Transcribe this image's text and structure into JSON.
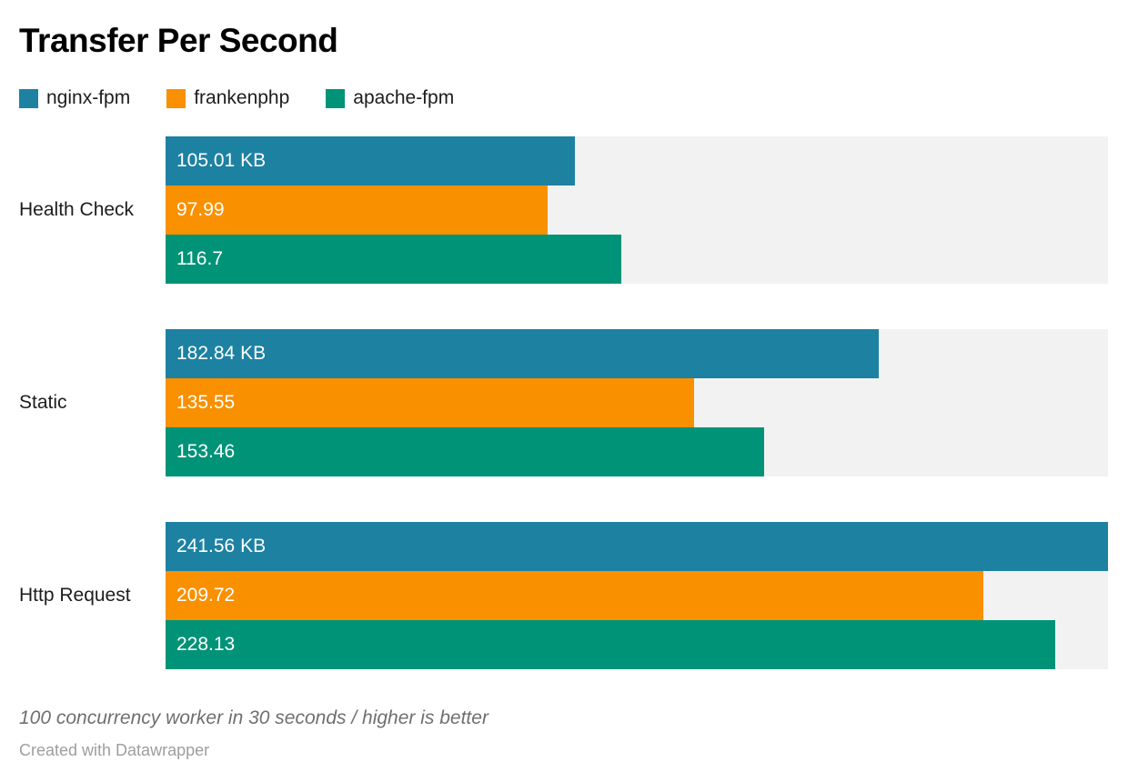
{
  "chart_data": {
    "type": "bar",
    "orientation": "horizontal",
    "title": "Transfer Per Second",
    "categories": [
      "Health Check",
      "Static",
      "Http Request"
    ],
    "series": [
      {
        "name": "nginx-fpm",
        "color": "#1d81a2",
        "values": [
          105.01,
          182.84,
          241.56
        ],
        "labels": [
          "105.01 KB",
          "182.84 KB",
          "241.56 KB"
        ]
      },
      {
        "name": "frankenphp",
        "color": "#f99000",
        "values": [
          97.99,
          135.55,
          209.72
        ],
        "labels": [
          "97.99",
          "135.55",
          "209.72"
        ]
      },
      {
        "name": "apache-fpm",
        "color": "#009377",
        "values": [
          116.7,
          153.46,
          228.13
        ],
        "labels": [
          "116.7",
          "153.46",
          "228.13"
        ]
      }
    ],
    "xmax": 241.56,
    "unit": "KB",
    "xlabel": "",
    "ylabel": "",
    "grid": false,
    "legend_position": "top",
    "track_color": "#f2f2f2",
    "value_label_color": "#ffffff"
  },
  "footer": {
    "note": "100 concurrency worker in 30 seconds / higher is better",
    "credit": "Created with Datawrapper"
  }
}
